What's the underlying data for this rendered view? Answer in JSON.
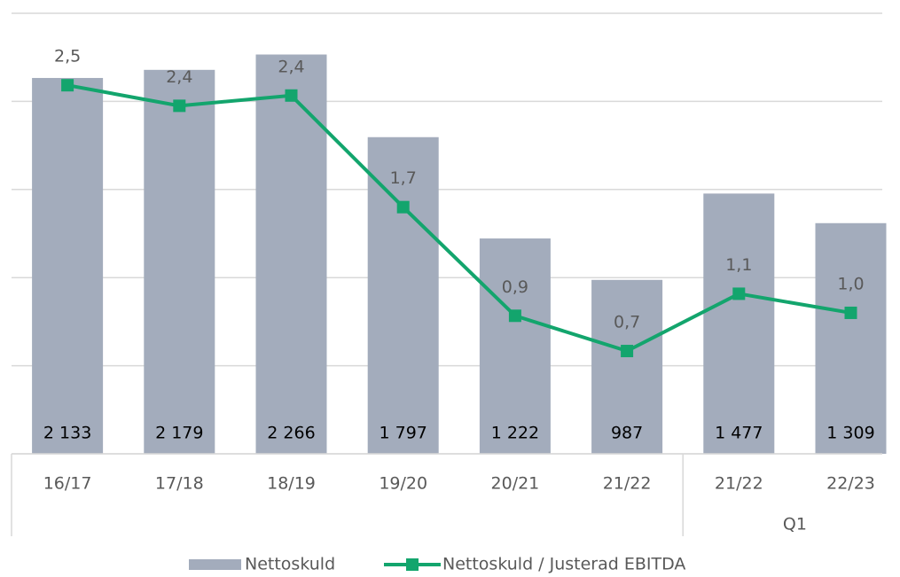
{
  "chart_data": {
    "type": "bar_line",
    "categories": [
      "16/17",
      "17/18",
      "18/19",
      "19/20",
      "20/21",
      "21/22",
      "21/22",
      "22/23"
    ],
    "category_groups": [
      {
        "label": "Q1",
        "from": 6,
        "to": 7
      }
    ],
    "series": [
      {
        "name": "Nettoskuld",
        "type": "bar",
        "color": "#a3acbc",
        "values": [
          2133,
          2179,
          2266,
          1797,
          1222,
          987,
          1477,
          1309
        ],
        "value_labels": [
          "2 133",
          "2 179",
          "2 266",
          "1 797",
          "1 222",
          "987",
          "1 477",
          "1 309"
        ]
      },
      {
        "name": "Nettoskuld / Justerad EBITDA",
        "type": "line",
        "axis": "y2",
        "color": "#13a56d",
        "values": [
          2.51,
          2.37,
          2.44,
          1.68,
          0.94,
          0.7,
          1.09,
          0.96
        ],
        "value_labels": [
          "2,5",
          "2,4",
          "2,4",
          "1,7",
          "0,9",
          "0,7",
          "1,1",
          "1,0"
        ]
      }
    ],
    "ylim": [
      0,
      2500
    ],
    "yticks": [
      0,
      500,
      1000,
      1500,
      2000,
      2500
    ],
    "y2lim": [
      0,
      3
    ],
    "grid": true,
    "legend": "bottom"
  }
}
